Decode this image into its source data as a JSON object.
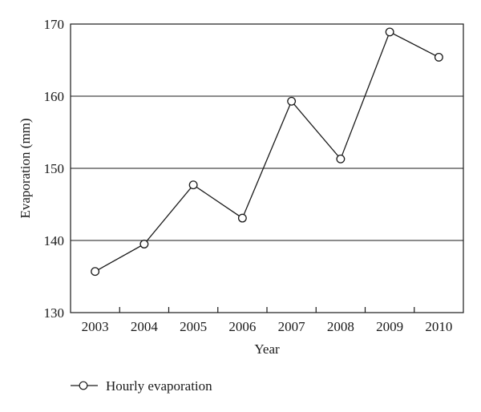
{
  "chart_data": {
    "type": "line",
    "title": "",
    "xlabel": "Year",
    "ylabel": "Evaporation (mm)",
    "categories": [
      "2003",
      "2004",
      "2005",
      "2006",
      "2007",
      "2008",
      "2009",
      "2010"
    ],
    "ylim": [
      130,
      170
    ],
    "yticks": [
      "130",
      "140",
      "150",
      "160",
      "170"
    ],
    "grid": "horizontal",
    "legend_position": "bottom-left",
    "series": [
      {
        "name": "Hourly evaporation",
        "values": [
          135.7,
          139.5,
          147.7,
          143.1,
          159.3,
          151.3,
          168.9,
          165.4
        ],
        "color": "#1a1a1a",
        "marker": "open-circle"
      }
    ]
  }
}
